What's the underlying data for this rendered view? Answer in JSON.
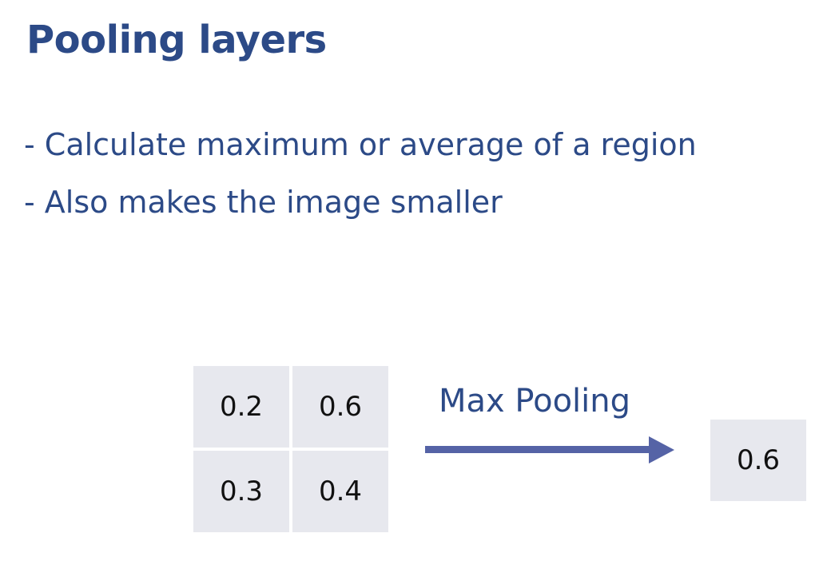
{
  "slide": {
    "title": "Pooling layers",
    "bullets": [
      "- Calculate maximum or average of a region",
      "- Also makes the image smaller"
    ]
  },
  "diagram": {
    "input_grid": [
      [
        "0.2",
        "0.6"
      ],
      [
        "0.3",
        "0.4"
      ]
    ],
    "operation_label": "Max Pooling",
    "output_value": "0.6",
    "colors": {
      "text_blue": "#2c4a87",
      "arrow": "#5563a6",
      "cell_bg": "#e7e8ee"
    }
  }
}
